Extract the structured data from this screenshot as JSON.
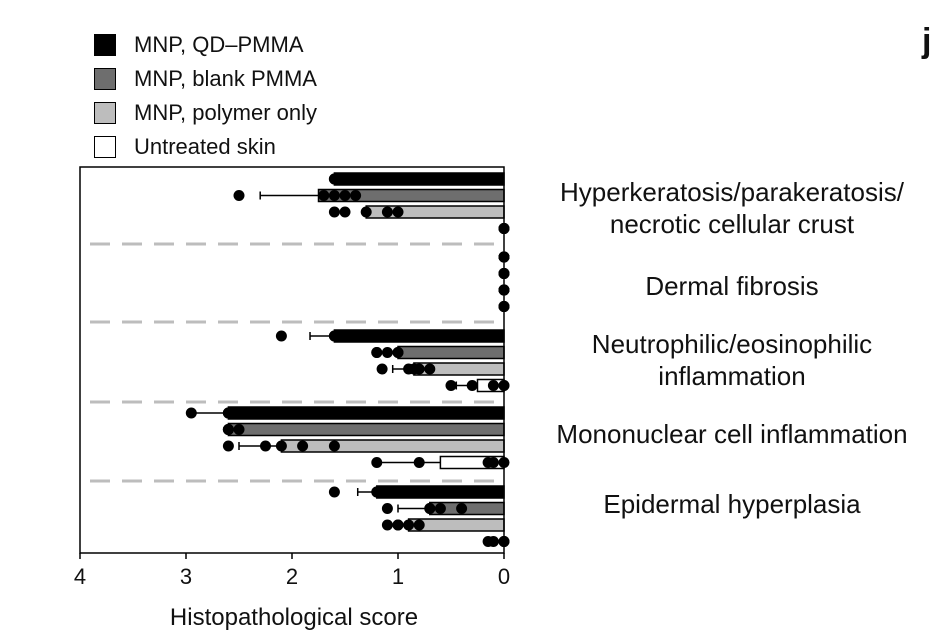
{
  "panel_label": "j",
  "legend": [
    {
      "label": "MNP, QD–PMMA",
      "color": "#000000"
    },
    {
      "label": "MNP, blank PMMA",
      "color": "#6e6e6e"
    },
    {
      "label": "MNP, polymer only",
      "color": "#bdbdbd"
    },
    {
      "label": "Untreated skin",
      "color": "#ffffff"
    }
  ],
  "category_labels": [
    {
      "line1": "Hyperkeratosis/parakeratosis/",
      "line2": "necrotic cellular crust"
    },
    {
      "line1": "Dermal fibrosis",
      "line2": ""
    },
    {
      "line1": "Neutrophilic/eosinophilic",
      "line2": "inflammation"
    },
    {
      "line1": "Mononuclear cell inflammation",
      "line2": ""
    },
    {
      "line1": "Epidermal hyperplasia",
      "line2": ""
    }
  ],
  "chart_data": {
    "type": "bar",
    "orientation": "horizontal",
    "xlabel": "Histopathological score",
    "x_reversed": true,
    "xlim": [
      0,
      4
    ],
    "xticks": [
      "4",
      "3",
      "2",
      "1",
      "0"
    ],
    "categories": [
      "Hyperkeratosis/parakeratosis/necrotic cellular crust",
      "Dermal fibrosis",
      "Neutrophilic/eosinophilic inflammation",
      "Mononuclear cell inflammation",
      "Epidermal hyperplasia"
    ],
    "series": [
      {
        "name": "MNP, QD–PMMA",
        "color": "#000000",
        "values": [
          1.6,
          0,
          1.6,
          2.6,
          1.2
        ],
        "error": [
          0,
          0,
          0.23,
          0.35,
          0.18
        ],
        "points": [
          [
            1.35,
            1.4,
            1.5,
            1.6,
            1.6
          ],
          [
            0,
            0,
            0,
            0,
            0
          ],
          [
            1.6,
            2.1,
            1.6,
            1.5,
            1.35
          ],
          [
            2.6,
            2.95,
            2.6,
            2.55,
            2.6
          ],
          [
            1.2,
            1.6,
            1.2,
            1.0,
            1.1
          ]
        ]
      },
      {
        "name": "MNP, blank PMMA",
        "color": "#6e6e6e",
        "values": [
          1.75,
          0,
          1.0,
          2.6,
          0.7
        ],
        "error": [
          0.55,
          0,
          0,
          0,
          0.3
        ],
        "points": [
          [
            2.5,
            1.6,
            1.7,
            1.5,
            1.4
          ],
          [
            0,
            0,
            0,
            0,
            0
          ],
          [
            1.2,
            1.0,
            1.2,
            1.1,
            1.0
          ],
          [
            2.6,
            2.6,
            2.6,
            2.5,
            2.6
          ],
          [
            1.1,
            0.7,
            0.6,
            0.4,
            0.7
          ]
        ]
      },
      {
        "name": "MNP, polymer only",
        "color": "#bdbdbd",
        "values": [
          1.3,
          0,
          0.85,
          2.1,
          0.9
        ],
        "error": [
          0,
          0,
          0.2,
          0.4,
          0
        ],
        "points": [
          [
            1.5,
            1.6,
            1.3,
            1.0,
            1.1
          ],
          [
            0,
            0,
            0,
            0,
            0
          ],
          [
            1.15,
            0.85,
            0.7,
            0.9,
            0.8
          ],
          [
            2.6,
            2.25,
            1.6,
            1.9,
            2.1
          ],
          [
            1.1,
            1.0,
            0.8,
            0.9,
            1.0
          ]
        ]
      },
      {
        "name": "Untreated skin",
        "color": "#ffffff",
        "values": [
          0,
          0,
          0.25,
          0.6,
          0
        ],
        "error": [
          0,
          0,
          0.2,
          0.6,
          0
        ],
        "points": [
          [
            0,
            0,
            0,
            0,
            0
          ],
          [
            0,
            0,
            0,
            0,
            0
          ],
          [
            0.5,
            0.3,
            0.1,
            0,
            0
          ],
          [
            1.2,
            0.8,
            0.1,
            0.15,
            0
          ],
          [
            0.15,
            0.1,
            0,
            0,
            0
          ]
        ]
      }
    ],
    "grid": false
  }
}
